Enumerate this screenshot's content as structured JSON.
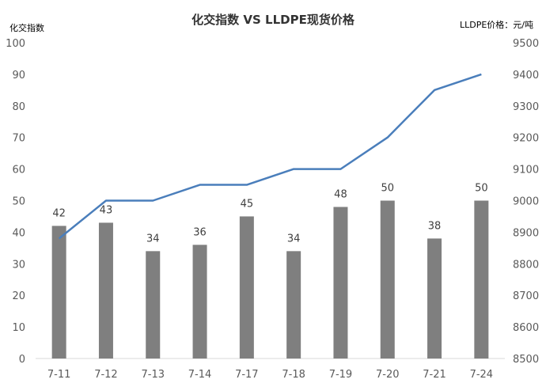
{
  "chart_data": {
    "type": "bar+line",
    "title": "化交指数 VS LLDPE现货价格",
    "categories": [
      "7-11",
      "7-12",
      "7-13",
      "7-14",
      "7-17",
      "7-18",
      "7-19",
      "7-20",
      "7-21",
      "7-24"
    ],
    "series": [
      {
        "type": "bar",
        "axis": "left",
        "values": [
          42,
          43,
          34,
          36,
          45,
          34,
          48,
          50,
          38,
          50
        ],
        "color": "#7f7f7f"
      },
      {
        "type": "line",
        "axis": "right",
        "values": [
          8880,
          9000,
          9000,
          9050,
          9050,
          9100,
          9100,
          9200,
          9350,
          9400
        ],
        "color": "#4a7ebb"
      }
    ],
    "ylabel": "化交指数",
    "y2label": "LLDPE价格：元/吨",
    "ylim": [
      0,
      100
    ],
    "y2lim": [
      8500,
      9500
    ],
    "yticks": [
      0,
      10,
      20,
      30,
      40,
      50,
      60,
      70,
      80,
      90,
      100
    ],
    "y2ticks": [
      8500,
      8600,
      8700,
      8800,
      8900,
      9000,
      9100,
      9200,
      9300,
      9400,
      9500
    ],
    "grid": false,
    "legend": "none"
  }
}
